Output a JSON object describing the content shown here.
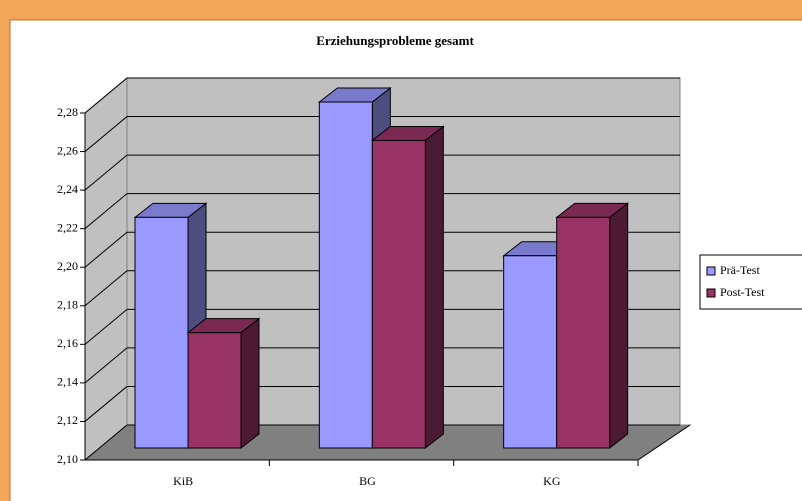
{
  "chart_data": {
    "type": "bar3d",
    "title": "Erziehungsprobleme gesamt",
    "categories": [
      "KiB",
      "BG",
      "KG"
    ],
    "series": [
      {
        "name": "Prä-Test",
        "color": "#9999ff",
        "values": [
          2.22,
          2.28,
          2.2
        ]
      },
      {
        "name": "Post-Test",
        "color": "#993366",
        "values": [
          2.16,
          2.26,
          2.22
        ]
      }
    ],
    "ylim": [
      2.1,
      2.28
    ],
    "yticks": [
      {
        "value": 2.1,
        "label": "2,10"
      },
      {
        "value": 2.12,
        "label": "2,12"
      },
      {
        "value": 2.14,
        "label": "2,14"
      },
      {
        "value": 2.16,
        "label": "2,16"
      },
      {
        "value": 2.18,
        "label": "2,18"
      },
      {
        "value": 2.2,
        "label": "2,20"
      },
      {
        "value": 2.22,
        "label": "2,22"
      },
      {
        "value": 2.24,
        "label": "2,24"
      },
      {
        "value": 2.26,
        "label": "2,26"
      },
      {
        "value": 2.28,
        "label": "2,28"
      }
    ],
    "grid": true,
    "legend": "right"
  }
}
